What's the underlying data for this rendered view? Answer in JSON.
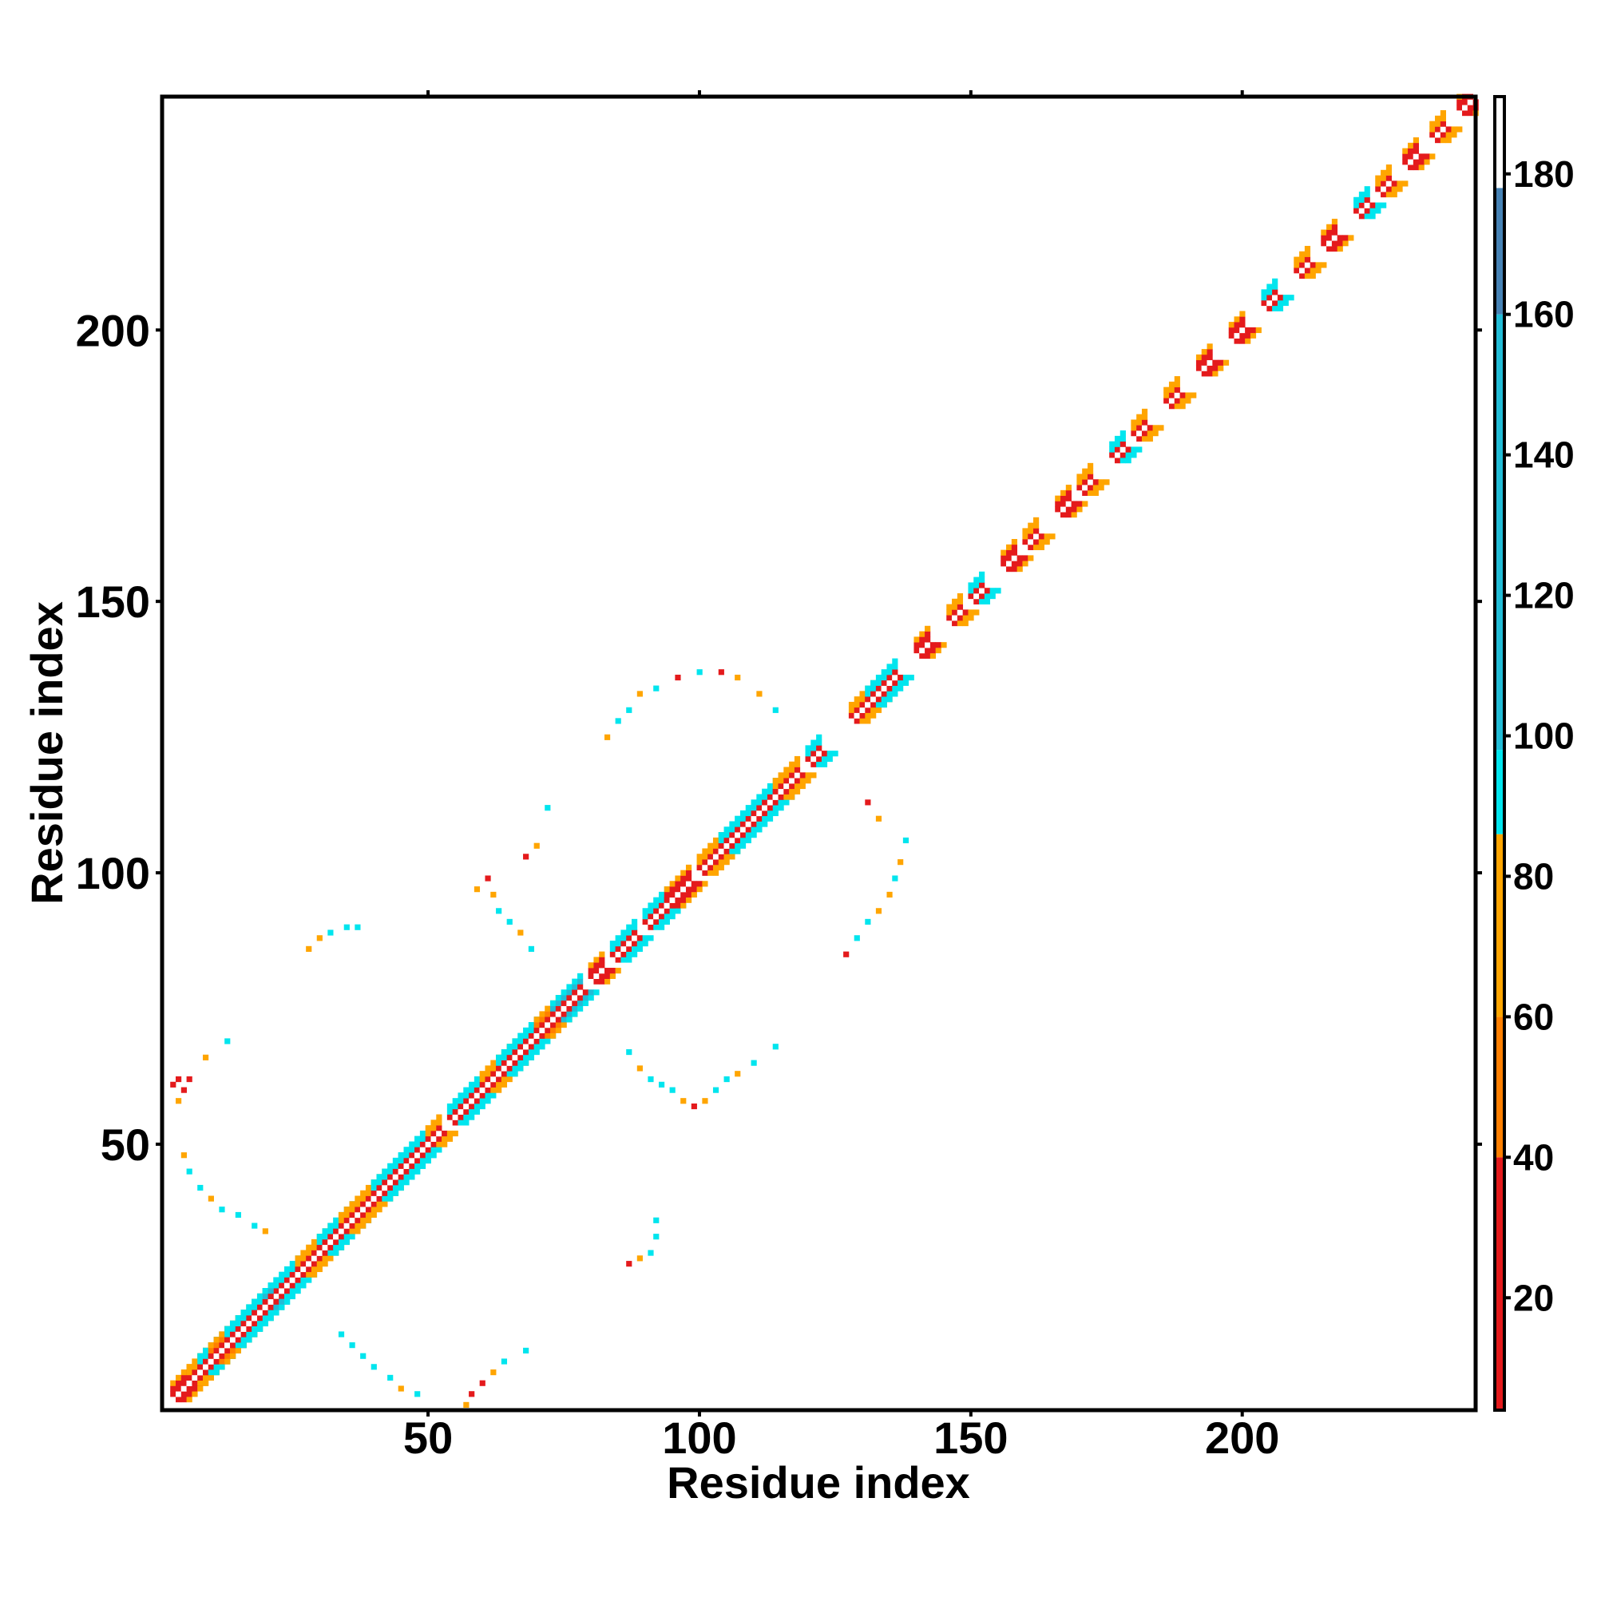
{
  "chart_data": {
    "type": "heatmap",
    "xlabel": "Residue index",
    "ylabel": "Residue index",
    "xlim": [
      1,
      243
    ],
    "ylim": [
      1,
      243
    ],
    "x_ticks": [
      50,
      100,
      150,
      200
    ],
    "y_ticks": [
      50,
      100,
      150,
      200
    ],
    "colorbar": {
      "range": [
        4,
        191
      ],
      "ticks": [
        20,
        40,
        60,
        80,
        100,
        120,
        140,
        160,
        180
      ],
      "bands": [
        {
          "from": 4,
          "to": 40,
          "color": "#e41a1c"
        },
        {
          "from": 40,
          "to": 60,
          "color": "#ff7f00"
        },
        {
          "from": 60,
          "to": 86,
          "color": "#ffa500"
        },
        {
          "from": 86,
          "to": 98,
          "color": "#00e5ee"
        },
        {
          "from": 98,
          "to": 160,
          "color": "#22bcd6"
        },
        {
          "from": 160,
          "to": 178,
          "color": "#4682b4"
        },
        {
          "from": 178,
          "to": 191,
          "color": "#ffffff"
        }
      ]
    },
    "series": [
      {
        "values": [
          [
            3,
            13,
            15
          ],
          [
            6,
            15,
            85
          ],
          [
            8,
            17,
            92
          ],
          [
            10,
            20,
            40
          ],
          [
            13,
            22,
            90
          ],
          [
            16,
            26,
            90
          ],
          [
            20,
            21,
            150
          ],
          [
            26,
            32,
            80
          ],
          [
            30,
            36,
            90
          ],
          [
            34,
            42,
            85
          ],
          [
            40,
            48,
            92
          ],
          [
            44,
            49,
            90
          ],
          [
            50,
            52,
            85
          ],
          [
            54,
            59,
            90
          ],
          [
            60,
            66,
            80
          ],
          [
            63,
            70,
            92
          ],
          [
            70,
            74,
            40
          ],
          [
            73,
            78,
            150
          ],
          [
            80,
            82,
            30
          ],
          [
            84,
            88,
            92
          ],
          [
            90,
            94,
            90
          ],
          [
            94,
            98,
            30
          ],
          [
            100,
            104,
            85
          ],
          [
            104,
            109,
            90
          ],
          [
            110,
            114,
            90
          ],
          [
            114,
            118,
            80
          ],
          [
            120,
            122,
            90
          ],
          [
            128,
            132,
            85
          ],
          [
            131,
            136,
            92
          ],
          [
            140,
            142,
            30
          ],
          [
            146,
            148,
            80
          ],
          [
            150,
            152,
            90
          ],
          [
            156,
            158,
            30
          ],
          [
            160,
            162,
            80
          ],
          [
            166,
            168,
            35
          ],
          [
            170,
            172,
            80
          ],
          [
            176,
            178,
            90
          ],
          [
            180,
            182,
            75
          ],
          [
            186,
            188,
            80
          ],
          [
            192,
            194,
            30
          ],
          [
            198,
            200,
            30
          ],
          [
            204,
            206,
            92
          ],
          [
            210,
            212,
            80
          ],
          [
            215,
            217,
            25
          ],
          [
            221,
            223,
            90
          ],
          [
            225,
            227,
            75
          ],
          [
            230,
            232,
            35
          ],
          [
            235,
            237,
            80
          ],
          [
            240,
            242,
            30
          ]
        ]
      },
      {
        "values": [
          [
            3,
            61,
            35
          ],
          [
            4,
            58,
            80
          ],
          [
            4,
            62,
            35
          ],
          [
            5,
            60,
            20
          ],
          [
            6,
            62,
            30
          ],
          [
            9,
            66,
            80
          ],
          [
            13,
            69,
            92
          ],
          [
            5,
            48,
            80
          ],
          [
            6,
            45,
            90
          ],
          [
            8,
            42,
            90
          ],
          [
            10,
            40,
            80
          ],
          [
            12,
            38,
            92
          ],
          [
            15,
            37,
            90
          ],
          [
            18,
            35,
            92
          ],
          [
            20,
            34,
            80
          ],
          [
            34,
            15,
            92
          ],
          [
            36,
            13,
            90
          ],
          [
            38,
            11,
            90
          ],
          [
            40,
            9,
            92
          ],
          [
            43,
            7,
            90
          ],
          [
            45,
            5,
            80
          ],
          [
            48,
            4,
            92
          ],
          [
            57,
            2,
            80
          ],
          [
            58,
            4,
            30
          ],
          [
            60,
            6,
            30
          ],
          [
            62,
            8,
            80
          ],
          [
            64,
            10,
            92
          ],
          [
            68,
            12,
            92
          ],
          [
            28,
            86,
            70
          ],
          [
            30,
            88,
            80
          ],
          [
            32,
            89,
            92
          ],
          [
            35,
            90,
            90
          ],
          [
            37,
            90,
            92
          ],
          [
            59,
            97,
            80
          ],
          [
            61,
            99,
            35
          ],
          [
            62,
            96,
            80
          ],
          [
            63,
            93,
            92
          ],
          [
            65,
            91,
            90
          ],
          [
            67,
            89,
            80
          ],
          [
            68,
            103,
            35
          ],
          [
            70,
            105,
            80
          ],
          [
            72,
            112,
            92
          ],
          [
            69,
            86,
            90
          ],
          [
            83,
            125,
            80
          ],
          [
            85,
            128,
            92
          ],
          [
            87,
            130,
            90
          ],
          [
            89,
            133,
            80
          ],
          [
            92,
            134,
            92
          ],
          [
            96,
            136,
            35
          ],
          [
            100,
            137,
            92
          ],
          [
            104,
            137,
            30
          ],
          [
            107,
            136,
            80
          ],
          [
            111,
            133,
            80
          ],
          [
            114,
            130,
            92
          ],
          [
            87,
            67,
            90
          ],
          [
            89,
            64,
            80
          ],
          [
            91,
            62,
            90
          ],
          [
            93,
            61,
            92
          ],
          [
            95,
            60,
            90
          ],
          [
            97,
            58,
            80
          ],
          [
            99,
            57,
            30
          ],
          [
            101,
            58,
            80
          ],
          [
            103,
            60,
            90
          ],
          [
            105,
            62,
            92
          ],
          [
            107,
            63,
            80
          ],
          [
            110,
            65,
            90
          ],
          [
            114,
            68,
            92
          ],
          [
            127,
            85,
            30
          ],
          [
            129,
            88,
            92
          ],
          [
            131,
            91,
            90
          ],
          [
            133,
            93,
            80
          ],
          [
            135,
            96,
            80
          ],
          [
            136,
            99,
            90
          ],
          [
            137,
            102,
            80
          ],
          [
            138,
            106,
            90
          ],
          [
            133,
            110,
            80
          ],
          [
            131,
            113,
            35
          ],
          [
            87,
            28,
            30
          ],
          [
            89,
            29,
            80
          ],
          [
            91,
            30,
            92
          ],
          [
            92,
            33,
            90
          ],
          [
            92,
            36,
            92
          ]
        ]
      }
    ]
  }
}
